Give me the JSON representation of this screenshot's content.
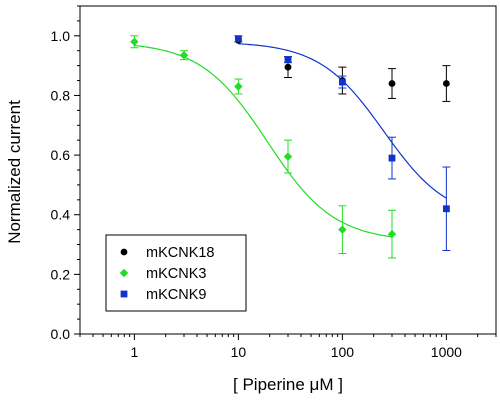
{
  "chart_data": {
    "type": "scatter",
    "xlabel": "[ Piperine μM ]",
    "ylabel": "Normalized current",
    "xscale": "log",
    "xlim": [
      0.3,
      3000
    ],
    "ylim": [
      0.0,
      1.1
    ],
    "xticks": [
      {
        "value": 1,
        "label": "1"
      },
      {
        "value": 10,
        "label": "10"
      },
      {
        "value": 100,
        "label": "100"
      },
      {
        "value": 1000,
        "label": "1000"
      }
    ],
    "yticks": [
      {
        "value": 0.0,
        "label": "0.0"
      },
      {
        "value": 0.2,
        "label": "0.2"
      },
      {
        "value": 0.4,
        "label": "0.4"
      },
      {
        "value": 0.6,
        "label": "0.6"
      },
      {
        "value": 0.8,
        "label": "0.8"
      },
      {
        "value": 1.0,
        "label": "1.0"
      }
    ],
    "grid": false,
    "legend": "bottom-left",
    "series": [
      {
        "name": "mKCNK18",
        "color": "#000000",
        "marker": "circle",
        "points": [
          {
            "x": 10,
            "y": 0.985,
            "err": 0.0
          },
          {
            "x": 30,
            "y": 0.895,
            "err": 0.035
          },
          {
            "x": 100,
            "y": 0.85,
            "err": 0.045
          },
          {
            "x": 300,
            "y": 0.84,
            "err": 0.05
          },
          {
            "x": 1000,
            "y": 0.84,
            "err": 0.06
          }
        ]
      },
      {
        "name": "mKCNK3",
        "color": "#22dd22",
        "marker": "diamond",
        "points": [
          {
            "x": 1,
            "y": 0.98,
            "err": 0.02
          },
          {
            "x": 3,
            "y": 0.935,
            "err": 0.015
          },
          {
            "x": 10,
            "y": 0.83,
            "err": 0.025
          },
          {
            "x": 30,
            "y": 0.595,
            "err": 0.055
          },
          {
            "x": 100,
            "y": 0.35,
            "err": 0.08
          },
          {
            "x": 300,
            "y": 0.335,
            "err": 0.08
          }
        ],
        "fit": {
          "top": 0.98,
          "bottom": 0.31,
          "ic50": 19,
          "hill": 1.35,
          "xmin": 1,
          "xmax": 300
        }
      },
      {
        "name": "mKCNK9",
        "color": "#1133cc",
        "marker": "square",
        "points": [
          {
            "x": 10,
            "y": 0.99,
            "err": 0.01
          },
          {
            "x": 30,
            "y": 0.92,
            "err": 0.01
          },
          {
            "x": 100,
            "y": 0.845,
            "err": 0.02
          },
          {
            "x": 300,
            "y": 0.59,
            "err": 0.07
          },
          {
            "x": 1000,
            "y": 0.42,
            "err": 0.14
          }
        ],
        "fit": {
          "top": 0.98,
          "bottom": 0.38,
          "ic50": 250,
          "hill": 1.4,
          "xmin": 10,
          "xmax": 1000
        }
      }
    ]
  }
}
